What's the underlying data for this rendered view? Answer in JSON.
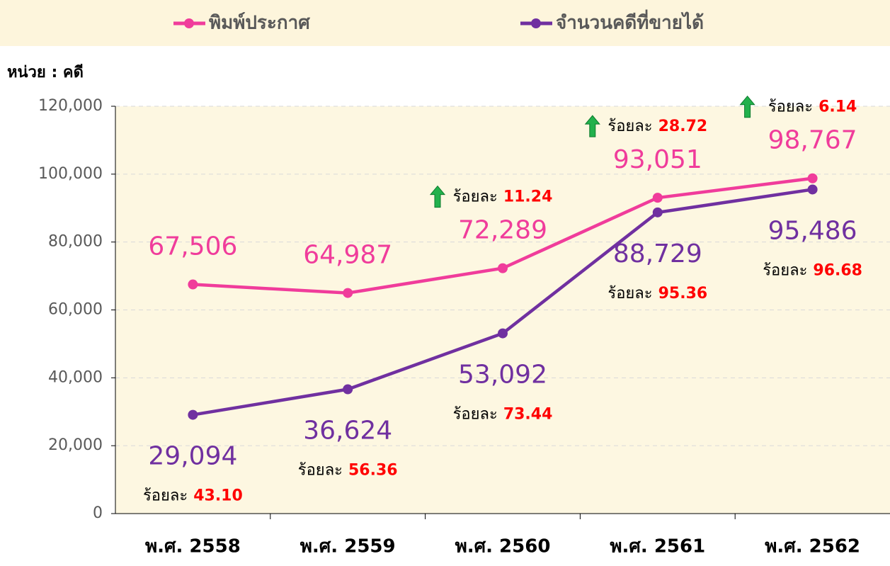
{
  "chart_data": {
    "type": "line",
    "unit_label": "หน่วย : คดี",
    "categories": [
      "พ.ศ. 2558",
      "พ.ศ. 2559",
      "พ.ศ. 2560",
      "พ.ศ. 2561",
      "พ.ศ. 2562"
    ],
    "series": [
      {
        "name": "พิมพ์ประกาศ",
        "color": "#f03c9b",
        "values": [
          67506,
          64987,
          72289,
          93051,
          98767
        ],
        "value_labels": [
          "67,506",
          "64,987",
          "72,289",
          "93,051",
          "98,767"
        ]
      },
      {
        "name": "จำนวนคดีที่ขายได้",
        "color": "#7030a0",
        "values": [
          29094,
          36624,
          53092,
          88729,
          95486
        ],
        "value_labels": [
          "29,094",
          "36,624",
          "53,092",
          "88,729",
          "95,486"
        ]
      }
    ],
    "percent_prefix": "ร้อยละ",
    "sold_percent": {
      "values": [
        43.1,
        56.36,
        73.44,
        95.36,
        96.68
      ],
      "value_labels": [
        "43.10",
        "56.36",
        "73.44",
        "95.36",
        "96.68"
      ]
    },
    "growth_percent": {
      "values": [
        null,
        null,
        11.24,
        28.72,
        6.14
      ],
      "value_labels": [
        null,
        null,
        "11.24",
        "28.72",
        "6.14"
      ]
    },
    "ylim": [
      0,
      120000
    ],
    "yticks": [
      0,
      {
        "value": 20000,
        "label": "20,000"
      },
      {
        "value": 40000,
        "label": "40,000"
      },
      {
        "value": 60000,
        "label": "60,000"
      },
      {
        "value": 80000,
        "label": "80,000"
      },
      {
        "value": 100000,
        "label": "100,000"
      },
      {
        "value": 120000,
        "label": "120,000"
      }
    ],
    "grid": true
  }
}
